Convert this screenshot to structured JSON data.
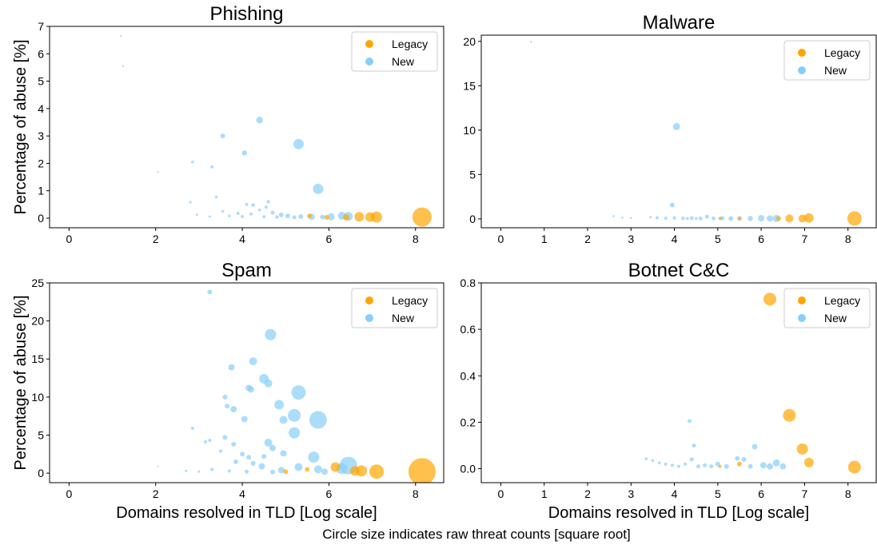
{
  "colors": {
    "legacy": "#ffa500",
    "new": "#87cefa"
  },
  "figure": {
    "footnote": "Circle size indicates raw threat counts [square root]",
    "legend_position": "top-right"
  },
  "chart_data": [
    {
      "type": "scatter",
      "title": "Phishing",
      "xlabel": "",
      "ylabel": "Percentage of abuse [%]",
      "xlim": [
        -0.45,
        8.65
      ],
      "ylim": [
        -0.35,
        7
      ],
      "xticks": [
        0,
        2,
        4,
        6,
        8
      ],
      "yticks": [
        0,
        1,
        2,
        3,
        4,
        5,
        6,
        7
      ],
      "legend": [
        "Legacy",
        "New"
      ],
      "series": [
        {
          "name": "Legacy",
          "points": [
            {
              "x": 8.15,
              "y": 0.04,
              "s": 12
            },
            {
              "x": 7.1,
              "y": 0.04,
              "s": 7
            },
            {
              "x": 6.95,
              "y": 0.04,
              "s": 6
            },
            {
              "x": 6.7,
              "y": 0.05,
              "s": 6
            },
            {
              "x": 6.4,
              "y": 0.03,
              "s": 4
            },
            {
              "x": 5.55,
              "y": 0.08,
              "s": 3
            },
            {
              "x": 5.95,
              "y": 0.03,
              "s": 3
            }
          ]
        },
        {
          "name": "New",
          "points": [
            {
              "x": 1.2,
              "y": 6.65,
              "s": 1.2
            },
            {
              "x": 1.25,
              "y": 5.55,
              "s": 1.2
            },
            {
              "x": 2.05,
              "y": 1.68,
              "s": 1.2
            },
            {
              "x": 2.85,
              "y": 2.05,
              "s": 1.8
            },
            {
              "x": 3.55,
              "y": 3.0,
              "s": 3
            },
            {
              "x": 3.3,
              "y": 1.87,
              "s": 2
            },
            {
              "x": 4.05,
              "y": 2.38,
              "s": 3.2
            },
            {
              "x": 4.4,
              "y": 3.58,
              "s": 4.2
            },
            {
              "x": 5.3,
              "y": 2.7,
              "s": 6.5
            },
            {
              "x": 5.75,
              "y": 1.07,
              "s": 6.5
            },
            {
              "x": 3.4,
              "y": 0.77,
              "s": 1.8
            },
            {
              "x": 2.8,
              "y": 0.58,
              "s": 1.6
            },
            {
              "x": 4.1,
              "y": 0.5,
              "s": 2
            },
            {
              "x": 4.25,
              "y": 0.48,
              "s": 2.2
            },
            {
              "x": 4.6,
              "y": 0.6,
              "s": 2.2
            },
            {
              "x": 4.55,
              "y": 0.4,
              "s": 2
            },
            {
              "x": 4.4,
              "y": 0.3,
              "s": 1.8
            },
            {
              "x": 3.55,
              "y": 0.25,
              "s": 1.8
            },
            {
              "x": 3.9,
              "y": 0.18,
              "s": 2
            },
            {
              "x": 4.2,
              "y": 0.15,
              "s": 2
            },
            {
              "x": 4.7,
              "y": 0.2,
              "s": 2.5
            },
            {
              "x": 4.9,
              "y": 0.12,
              "s": 3
            },
            {
              "x": 5.05,
              "y": 0.08,
              "s": 3
            },
            {
              "x": 5.35,
              "y": 0.06,
              "s": 3
            },
            {
              "x": 5.6,
              "y": 0.05,
              "s": 4
            },
            {
              "x": 6.05,
              "y": 0.05,
              "s": 4.5
            },
            {
              "x": 6.3,
              "y": 0.09,
              "s": 5
            },
            {
              "x": 6.45,
              "y": 0.07,
              "s": 5.5
            },
            {
              "x": 5.85,
              "y": 0.04,
              "s": 3
            },
            {
              "x": 2.95,
              "y": 0.12,
              "s": 1.5
            },
            {
              "x": 3.25,
              "y": 0.06,
              "s": 1.5
            },
            {
              "x": 3.7,
              "y": 0.08,
              "s": 1.8
            },
            {
              "x": 4.0,
              "y": 0.06,
              "s": 2
            },
            {
              "x": 4.5,
              "y": 0.05,
              "s": 2
            },
            {
              "x": 4.8,
              "y": 0.04,
              "s": 2.2
            },
            {
              "x": 5.2,
              "y": 0.03,
              "s": 2.5
            }
          ]
        }
      ]
    },
    {
      "type": "scatter",
      "title": "Malware",
      "xlabel": "",
      "ylabel": "",
      "xlim": [
        -0.45,
        8.65
      ],
      "ylim": [
        -1.0,
        20.7
      ],
      "xticks": [
        0,
        1,
        2,
        3,
        4,
        5,
        6,
        7,
        8
      ],
      "yticks": [
        0,
        5,
        10,
        15,
        20
      ],
      "legend": [
        "Legacy",
        "New"
      ],
      "series": [
        {
          "name": "Legacy",
          "points": [
            {
              "x": 8.15,
              "y": 0.05,
              "s": 9
            },
            {
              "x": 7.1,
              "y": 0.1,
              "s": 6
            },
            {
              "x": 6.95,
              "y": 0.05,
              "s": 5
            },
            {
              "x": 6.65,
              "y": 0.05,
              "s": 5
            },
            {
              "x": 6.4,
              "y": 0.05,
              "s": 3
            },
            {
              "x": 5.05,
              "y": 0.05,
              "s": 2
            },
            {
              "x": 5.5,
              "y": 0.05,
              "s": 2
            }
          ]
        },
        {
          "name": "New",
          "points": [
            {
              "x": 0.7,
              "y": 19.95,
              "s": 1.2
            },
            {
              "x": 4.05,
              "y": 10.4,
              "s": 4.5
            },
            {
              "x": 3.95,
              "y": 1.55,
              "s": 3
            },
            {
              "x": 2.6,
              "y": 0.3,
              "s": 1.3
            },
            {
              "x": 2.8,
              "y": 0.15,
              "s": 1.3
            },
            {
              "x": 3.0,
              "y": 0.1,
              "s": 1.3
            },
            {
              "x": 3.45,
              "y": 0.2,
              "s": 1.6
            },
            {
              "x": 3.6,
              "y": 0.12,
              "s": 2
            },
            {
              "x": 3.8,
              "y": 0.08,
              "s": 2
            },
            {
              "x": 4.0,
              "y": 0.1,
              "s": 2.2
            },
            {
              "x": 4.2,
              "y": 0.06,
              "s": 2.2
            },
            {
              "x": 4.4,
              "y": 0.08,
              "s": 2.4
            },
            {
              "x": 4.6,
              "y": 0.05,
              "s": 2.4
            },
            {
              "x": 4.75,
              "y": 0.25,
              "s": 2.5
            },
            {
              "x": 4.9,
              "y": 0.05,
              "s": 2.5
            },
            {
              "x": 5.1,
              "y": 0.08,
              "s": 2.8
            },
            {
              "x": 5.3,
              "y": 0.05,
              "s": 3
            },
            {
              "x": 5.5,
              "y": 0.05,
              "s": 3
            },
            {
              "x": 5.75,
              "y": 0.05,
              "s": 3.2
            },
            {
              "x": 6.0,
              "y": 0.08,
              "s": 4
            },
            {
              "x": 6.2,
              "y": 0.05,
              "s": 4
            },
            {
              "x": 6.35,
              "y": 0.05,
              "s": 4.5
            },
            {
              "x": 4.3,
              "y": 0.04,
              "s": 1.8
            },
            {
              "x": 4.5,
              "y": 0.03,
              "s": 1.8
            }
          ]
        }
      ]
    },
    {
      "type": "scatter",
      "title": "Spam",
      "xlabel": "Domains resolved in TLD [Log scale]",
      "ylabel": "Percentage of abuse [%]",
      "xlim": [
        -0.45,
        8.65
      ],
      "ylim": [
        -1.25,
        25
      ],
      "xticks": [
        0,
        2,
        4,
        6,
        8
      ],
      "yticks": [
        0,
        5,
        10,
        15,
        20,
        25
      ],
      "legend": [
        "Legacy",
        "New"
      ],
      "series": [
        {
          "name": "Legacy",
          "points": [
            {
              "x": 8.15,
              "y": 0.2,
              "s": 17
            },
            {
              "x": 7.1,
              "y": 0.2,
              "s": 9
            },
            {
              "x": 6.75,
              "y": 0.3,
              "s": 7
            },
            {
              "x": 6.6,
              "y": 0.3,
              "s": 6
            },
            {
              "x": 6.15,
              "y": 0.8,
              "s": 6
            },
            {
              "x": 5.5,
              "y": 0.5,
              "s": 3
            },
            {
              "x": 5.0,
              "y": 0.2,
              "s": 3
            }
          ]
        },
        {
          "name": "New",
          "points": [
            {
              "x": 3.25,
              "y": 23.8,
              "s": 3
            },
            {
              "x": 4.65,
              "y": 18.2,
              "s": 7
            },
            {
              "x": 4.25,
              "y": 14.7,
              "s": 5
            },
            {
              "x": 3.75,
              "y": 13.9,
              "s": 4
            },
            {
              "x": 4.5,
              "y": 12.4,
              "s": 6
            },
            {
              "x": 4.6,
              "y": 11.8,
              "s": 5
            },
            {
              "x": 4.15,
              "y": 11.2,
              "s": 4
            },
            {
              "x": 4.2,
              "y": 11.0,
              "s": 4
            },
            {
              "x": 5.3,
              "y": 10.6,
              "s": 9
            },
            {
              "x": 3.6,
              "y": 10.0,
              "s": 3
            },
            {
              "x": 4.85,
              "y": 9.0,
              "s": 6
            },
            {
              "x": 3.65,
              "y": 8.8,
              "s": 3
            },
            {
              "x": 3.8,
              "y": 8.4,
              "s": 4
            },
            {
              "x": 5.2,
              "y": 7.6,
              "s": 8
            },
            {
              "x": 5.75,
              "y": 7.0,
              "s": 11
            },
            {
              "x": 4.05,
              "y": 7.1,
              "s": 4
            },
            {
              "x": 4.95,
              "y": 7.0,
              "s": 5
            },
            {
              "x": 5.2,
              "y": 5.3,
              "s": 7
            },
            {
              "x": 2.85,
              "y": 5.9,
              "s": 2
            },
            {
              "x": 3.6,
              "y": 4.7,
              "s": 3
            },
            {
              "x": 3.25,
              "y": 4.3,
              "s": 2
            },
            {
              "x": 3.15,
              "y": 4.1,
              "s": 2
            },
            {
              "x": 3.8,
              "y": 3.8,
              "s": 3
            },
            {
              "x": 4.6,
              "y": 4.0,
              "s": 5
            },
            {
              "x": 4.7,
              "y": 3.3,
              "s": 4
            },
            {
              "x": 4.95,
              "y": 2.6,
              "s": 4
            },
            {
              "x": 5.65,
              "y": 2.1,
              "s": 7
            },
            {
              "x": 3.5,
              "y": 2.9,
              "s": 2
            },
            {
              "x": 4.0,
              "y": 2.5,
              "s": 3
            },
            {
              "x": 4.15,
              "y": 2.1,
              "s": 3
            },
            {
              "x": 4.5,
              "y": 2.2,
              "s": 3
            },
            {
              "x": 3.85,
              "y": 1.5,
              "s": 3
            },
            {
              "x": 4.25,
              "y": 1.3,
              "s": 3
            },
            {
              "x": 4.45,
              "y": 0.9,
              "s": 4
            },
            {
              "x": 5.3,
              "y": 0.8,
              "s": 5
            },
            {
              "x": 6.45,
              "y": 1.0,
              "s": 11
            },
            {
              "x": 6.3,
              "y": 0.6,
              "s": 7
            },
            {
              "x": 5.75,
              "y": 0.5,
              "s": 5
            },
            {
              "x": 4.9,
              "y": 0.4,
              "s": 4
            },
            {
              "x": 3.3,
              "y": 0.5,
              "s": 2
            },
            {
              "x": 2.7,
              "y": 0.3,
              "s": 1.5
            },
            {
              "x": 2.05,
              "y": 0.9,
              "s": 1.2
            },
            {
              "x": 3.0,
              "y": 0.2,
              "s": 1.5
            },
            {
              "x": 3.7,
              "y": 0.3,
              "s": 2
            },
            {
              "x": 4.1,
              "y": 0.2,
              "s": 2.5
            },
            {
              "x": 4.7,
              "y": 0.15,
              "s": 3
            },
            {
              "x": 5.9,
              "y": 0.2,
              "s": 4
            }
          ]
        }
      ]
    },
    {
      "type": "scatter",
      "title": "Botnet C&C",
      "xlabel": "Domains resolved in TLD [Log scale]",
      "ylabel": "",
      "xlim": [
        -0.45,
        8.65
      ],
      "ylim": [
        -0.06,
        0.8
      ],
      "xticks": [
        0,
        1,
        2,
        3,
        4,
        5,
        6,
        7,
        8
      ],
      "yticks": [
        0.0,
        0.2,
        0.4,
        0.6,
        0.8
      ],
      "legend": [
        "Legacy",
        "New"
      ],
      "series": [
        {
          "name": "Legacy",
          "points": [
            {
              "x": 6.2,
              "y": 0.73,
              "s": 8
            },
            {
              "x": 6.65,
              "y": 0.23,
              "s": 8
            },
            {
              "x": 6.95,
              "y": 0.085,
              "s": 7
            },
            {
              "x": 7.1,
              "y": 0.027,
              "s": 6
            },
            {
              "x": 8.15,
              "y": 0.007,
              "s": 8
            },
            {
              "x": 5.5,
              "y": 0.02,
              "s": 3
            },
            {
              "x": 5.05,
              "y": 0.01,
              "s": 2
            }
          ]
        },
        {
          "name": "New",
          "points": [
            {
              "x": 4.35,
              "y": 0.205,
              "s": 2.5
            },
            {
              "x": 4.45,
              "y": 0.1,
              "s": 2.5
            },
            {
              "x": 5.85,
              "y": 0.095,
              "s": 3.5
            },
            {
              "x": 3.35,
              "y": 0.043,
              "s": 1.8
            },
            {
              "x": 3.5,
              "y": 0.035,
              "s": 1.8
            },
            {
              "x": 3.65,
              "y": 0.025,
              "s": 1.8
            },
            {
              "x": 3.8,
              "y": 0.02,
              "s": 2
            },
            {
              "x": 3.95,
              "y": 0.015,
              "s": 2
            },
            {
              "x": 4.1,
              "y": 0.01,
              "s": 2
            },
            {
              "x": 4.25,
              "y": 0.02,
              "s": 2
            },
            {
              "x": 4.4,
              "y": 0.04,
              "s": 2.5
            },
            {
              "x": 4.55,
              "y": 0.01,
              "s": 2.5
            },
            {
              "x": 4.7,
              "y": 0.015,
              "s": 2.5
            },
            {
              "x": 4.85,
              "y": 0.01,
              "s": 2.5
            },
            {
              "x": 5.0,
              "y": 0.02,
              "s": 3
            },
            {
              "x": 5.2,
              "y": 0.01,
              "s": 3
            },
            {
              "x": 5.45,
              "y": 0.045,
              "s": 3
            },
            {
              "x": 5.6,
              "y": 0.04,
              "s": 3
            },
            {
              "x": 5.75,
              "y": 0.01,
              "s": 3
            },
            {
              "x": 6.05,
              "y": 0.015,
              "s": 4
            },
            {
              "x": 6.2,
              "y": 0.01,
              "s": 4
            },
            {
              "x": 6.35,
              "y": 0.025,
              "s": 4.5
            },
            {
              "x": 6.5,
              "y": 0.01,
              "s": 4
            }
          ]
        }
      ]
    }
  ]
}
